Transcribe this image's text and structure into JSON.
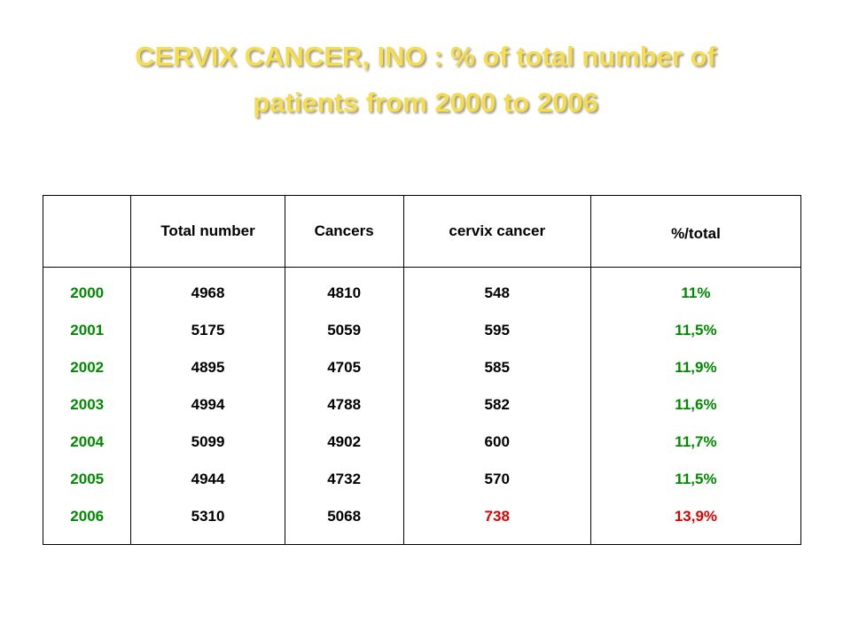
{
  "title": {
    "line1": "CERVIX CANCER, INO : % of total number of",
    "line2": "patients from 2000 to 2006"
  },
  "table": {
    "headers": {
      "year": "",
      "total": "Total number",
      "cancers": "Cancers",
      "cervix": "cervix cancer",
      "pct": "%/total"
    },
    "rows": [
      {
        "year": "2000",
        "total": "4968",
        "cancers": "4810",
        "cervix": "548",
        "pct": "11%"
      },
      {
        "year": "2001",
        "total": "5175",
        "cancers": "5059",
        "cervix": "595",
        "pct": "11,5%"
      },
      {
        "year": "2002",
        "total": "4895",
        "cancers": "4705",
        "cervix": "585",
        "pct": "11,9%"
      },
      {
        "year": "2003",
        "total": "4994",
        "cancers": "4788",
        "cervix": "582",
        "pct": "11,6%"
      },
      {
        "year": "2004",
        "total": "5099",
        "cancers": "4902",
        "cervix": "600",
        "pct": "11,7%"
      },
      {
        "year": "2005",
        "total": "4944",
        "cancers": "4732",
        "cervix": "570",
        "pct": "11,5%"
      },
      {
        "year": "2006",
        "total": "5310",
        "cancers": "5068",
        "cervix": "738",
        "pct": "13,9%"
      }
    ]
  },
  "colors": {
    "title": "#f5dd50",
    "year": "#008a00",
    "percent": "#008a00",
    "highlight": "#e00000"
  }
}
